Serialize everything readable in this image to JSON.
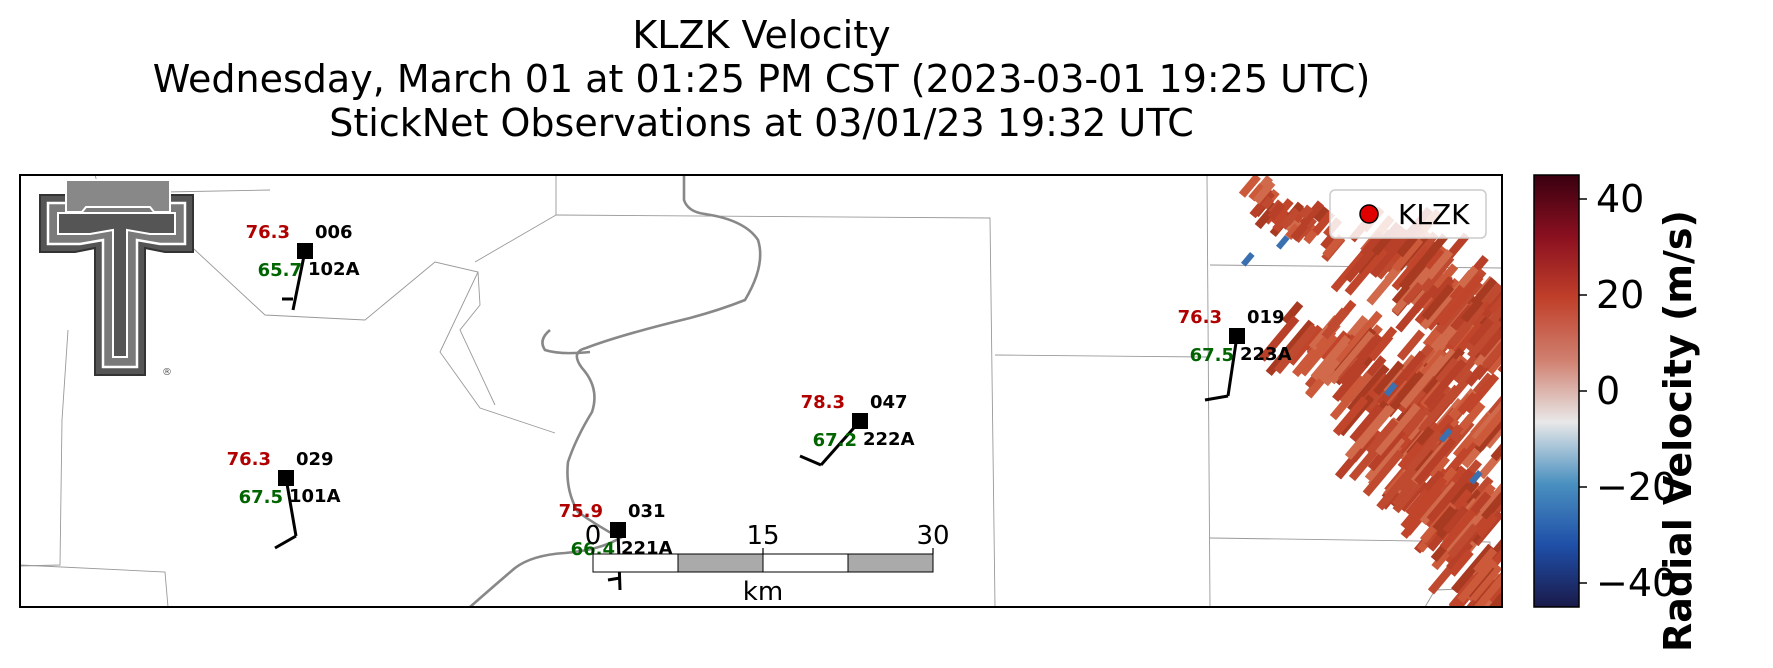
{
  "title": {
    "line1": "KLZK Velocity",
    "line2": "Wednesday, March 01 at 01:25 PM CST (2023-03-01 19:25 UTC)",
    "line3": "StickNet Observations at 03/01/23 19:32 UTC"
  },
  "legend": {
    "label": "KLZK",
    "marker_color": "#e00000"
  },
  "scale_bar": {
    "ticks": [
      "0",
      "15",
      "30"
    ],
    "unit": "km"
  },
  "colorbar": {
    "label": "Radial Velocity (m/s)",
    "ticks": [
      "40",
      "20",
      "0",
      "−20",
      "−40"
    ],
    "range": [
      -45,
      45
    ],
    "colors": [
      "#1a1a4a",
      "#1f4fa8",
      "#4a90c0",
      "#e8e8e8",
      "#d08070",
      "#c0402a",
      "#8a1020",
      "#3a0010"
    ]
  },
  "logo": {
    "name": "texas-tech-double-t-logo",
    "mark": "®"
  },
  "stations": [
    {
      "id": "006",
      "probe": "102A",
      "temp": "76.3",
      "dew": "65.7"
    },
    {
      "id": "029",
      "probe": "101A",
      "temp": "76.3",
      "dew": "67.5"
    },
    {
      "id": "031",
      "probe": "221A",
      "temp": "75.9",
      "dew": "66.4"
    },
    {
      "id": "047",
      "probe": "222A",
      "temp": "78.3",
      "dew": "67.2"
    },
    {
      "id": "019",
      "probe": "223A",
      "temp": "76.3",
      "dew": "67.5"
    }
  ],
  "colors": {
    "temp": "#b00000",
    "dew": "#006400",
    "river": "#888888",
    "county": "#999999",
    "radar": "#c0452a"
  }
}
